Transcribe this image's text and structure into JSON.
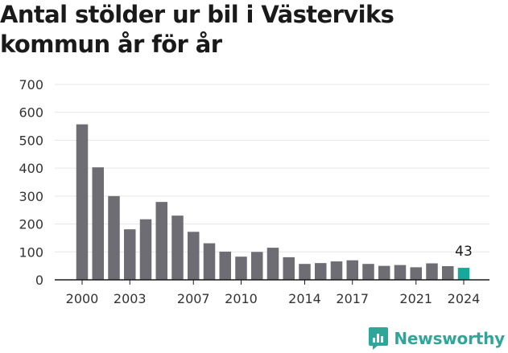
{
  "title": "Antal stölder ur bil i Västerviks kommun år för år",
  "brand": {
    "name": "Newsworthy",
    "icon": "newsworthy-logo-icon",
    "color": "#2ea79a"
  },
  "chart_data": {
    "type": "bar",
    "title": "Antal stölder ur bil i Västerviks kommun år för år",
    "xlabel": "",
    "ylabel": "",
    "ylim": [
      0,
      700
    ],
    "yticks": [
      0,
      100,
      200,
      300,
      400,
      500,
      600,
      700
    ],
    "grid": true,
    "categories": [
      2000,
      2001,
      2002,
      2003,
      2004,
      2005,
      2006,
      2007,
      2008,
      2009,
      2010,
      2011,
      2012,
      2013,
      2014,
      2015,
      2016,
      2017,
      2018,
      2019,
      2020,
      2021,
      2022,
      2023,
      2024
    ],
    "xticks": [
      2000,
      2003,
      2007,
      2010,
      2014,
      2017,
      2021,
      2024
    ],
    "values": [
      557,
      403,
      300,
      181,
      217,
      279,
      230,
      172,
      131,
      101,
      83,
      100,
      115,
      81,
      57,
      60,
      66,
      70,
      57,
      50,
      53,
      45,
      59,
      49,
      43
    ],
    "bar_color": "#6e6d73",
    "highlight_color": "#18a89a",
    "highlight_category": 2024,
    "value_labels": [
      {
        "category": 2024,
        "text": "43"
      }
    ]
  }
}
